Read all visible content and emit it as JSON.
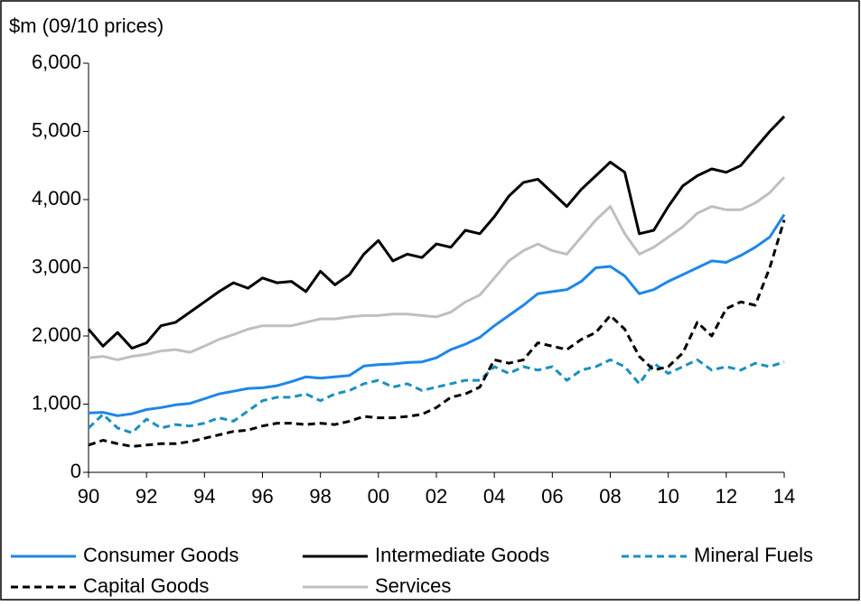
{
  "chart_data": {
    "type": "line",
    "y_label": "$m (09/10 prices)",
    "x": [
      1990,
      1990.5,
      1991,
      1991.5,
      1992,
      1992.5,
      1993,
      1993.5,
      1994,
      1994.5,
      1995,
      1995.5,
      1996,
      1996.5,
      1997,
      1997.5,
      1998,
      1998.5,
      1999,
      1999.5,
      2000,
      2000.5,
      2001,
      2001.5,
      2002,
      2002.5,
      2003,
      2003.5,
      2004,
      2004.5,
      2005,
      2005.5,
      2006,
      2006.5,
      2007,
      2007.5,
      2008,
      2008.5,
      2009,
      2009.5,
      2010,
      2010.5,
      2011,
      2011.5,
      2012,
      2012.5,
      2013,
      2013.5,
      2014
    ],
    "xlim": [
      1990,
      2014
    ],
    "xticks": [
      {
        "value": 1990,
        "label": "90"
      },
      {
        "value": 1992,
        "label": "92"
      },
      {
        "value": 1994,
        "label": "94"
      },
      {
        "value": 1996,
        "label": "96"
      },
      {
        "value": 1998,
        "label": "98"
      },
      {
        "value": 2000,
        "label": "00"
      },
      {
        "value": 2002,
        "label": "02"
      },
      {
        "value": 2004,
        "label": "04"
      },
      {
        "value": 2006,
        "label": "06"
      },
      {
        "value": 2008,
        "label": "08"
      },
      {
        "value": 2010,
        "label": "10"
      },
      {
        "value": 2012,
        "label": "12"
      },
      {
        "value": 2014,
        "label": "14"
      }
    ],
    "ylim": [
      0,
      6000
    ],
    "yticks": [
      0,
      {
        "value": 1000,
        "label": "1,000"
      },
      {
        "value": 2000,
        "label": "2,000"
      },
      {
        "value": 3000,
        "label": "3,000"
      },
      {
        "value": 4000,
        "label": "4,000"
      },
      {
        "value": 5000,
        "label": "5,000"
      },
      {
        "value": 6000,
        "label": "6,000"
      }
    ],
    "series": [
      {
        "name": "Consumer Goods",
        "color": "#1f86e8",
        "dashed": false,
        "values": [
          870,
          880,
          830,
          860,
          920,
          950,
          990,
          1010,
          1080,
          1150,
          1190,
          1230,
          1240,
          1270,
          1330,
          1400,
          1380,
          1400,
          1420,
          1560,
          1580,
          1590,
          1610,
          1620,
          1680,
          1800,
          1880,
          1980,
          2150,
          2300,
          2450,
          2620,
          2650,
          2680,
          2800,
          3000,
          3020,
          2880,
          2620,
          2680,
          2800,
          2900,
          3000,
          3100,
          3080,
          3180,
          3300,
          3450,
          3780
        ]
      },
      {
        "name": "Intermediate Goods",
        "color": "#000000",
        "dashed": false,
        "values": [
          2100,
          1850,
          2050,
          1820,
          1900,
          2150,
          2200,
          2350,
          2500,
          2650,
          2780,
          2700,
          2850,
          2780,
          2800,
          2650,
          2950,
          2750,
          2900,
          3200,
          3400,
          3100,
          3200,
          3150,
          3350,
          3300,
          3550,
          3500,
          3750,
          4050,
          4250,
          4300,
          4100,
          3900,
          4150,
          4350,
          4550,
          4400,
          3500,
          3550,
          3900,
          4200,
          4350,
          4450,
          4400,
          4500,
          4750,
          5000,
          5220
        ]
      },
      {
        "name": "Mineral Fuels",
        "color": "#1a8fc0",
        "dashed": true,
        "values": [
          650,
          850,
          650,
          580,
          780,
          650,
          700,
          680,
          720,
          800,
          750,
          900,
          1050,
          1100,
          1100,
          1150,
          1050,
          1150,
          1200,
          1300,
          1350,
          1250,
          1300,
          1200,
          1250,
          1300,
          1350,
          1350,
          1550,
          1450,
          1550,
          1500,
          1550,
          1350,
          1500,
          1550,
          1650,
          1550,
          1300,
          1600,
          1450,
          1550,
          1650,
          1500,
          1550,
          1500,
          1600,
          1550,
          1620
        ]
      },
      {
        "name": "Capital Goods",
        "color": "#000000",
        "dashed": true,
        "values": [
          400,
          470,
          420,
          380,
          400,
          420,
          420,
          450,
          500,
          550,
          600,
          620,
          680,
          720,
          720,
          700,
          720,
          700,
          750,
          820,
          800,
          800,
          820,
          850,
          950,
          1100,
          1150,
          1250,
          1650,
          1600,
          1650,
          1900,
          1850,
          1800,
          1950,
          2050,
          2300,
          2100,
          1700,
          1500,
          1550,
          1750,
          2200,
          2000,
          2400,
          2500,
          2450,
          3000,
          3700
        ]
      },
      {
        "name": "Services",
        "color": "#bfbfbf",
        "dashed": false,
        "values": [
          1680,
          1700,
          1650,
          1700,
          1730,
          1780,
          1800,
          1760,
          1850,
          1950,
          2020,
          2100,
          2150,
          2150,
          2150,
          2200,
          2250,
          2250,
          2280,
          2300,
          2300,
          2320,
          2320,
          2300,
          2280,
          2350,
          2500,
          2600,
          2850,
          3100,
          3250,
          3350,
          3250,
          3200,
          3450,
          3700,
          3900,
          3500,
          3200,
          3300,
          3450,
          3600,
          3800,
          3900,
          3850,
          3850,
          3950,
          4100,
          4330
        ]
      }
    ]
  }
}
